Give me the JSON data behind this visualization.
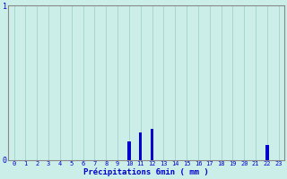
{
  "xlabel": "Précipitations 6min ( mm )",
  "ylabel": "",
  "background_color": "#cceee8",
  "bar_color": "#0000cc",
  "grid_color": "#aad4ce",
  "axis_color": "#888888",
  "text_color": "#0000cc",
  "ylim": [
    0,
    1.0
  ],
  "xlim": [
    -0.5,
    23.5
  ],
  "yticks": [
    0,
    1
  ],
  "xticks": [
    0,
    1,
    2,
    3,
    4,
    5,
    6,
    7,
    8,
    9,
    10,
    11,
    12,
    13,
    14,
    15,
    16,
    17,
    18,
    19,
    20,
    21,
    22,
    23
  ],
  "hours": [
    0,
    1,
    2,
    3,
    4,
    5,
    6,
    7,
    8,
    9,
    10,
    11,
    12,
    13,
    14,
    15,
    16,
    17,
    18,
    19,
    20,
    21,
    22,
    23
  ],
  "values": [
    0,
    0,
    0,
    0,
    0,
    0,
    0,
    0,
    0,
    0,
    0.12,
    0.18,
    0.2,
    0,
    0,
    0,
    0,
    0,
    0,
    0,
    0,
    0,
    0.1,
    0
  ]
}
